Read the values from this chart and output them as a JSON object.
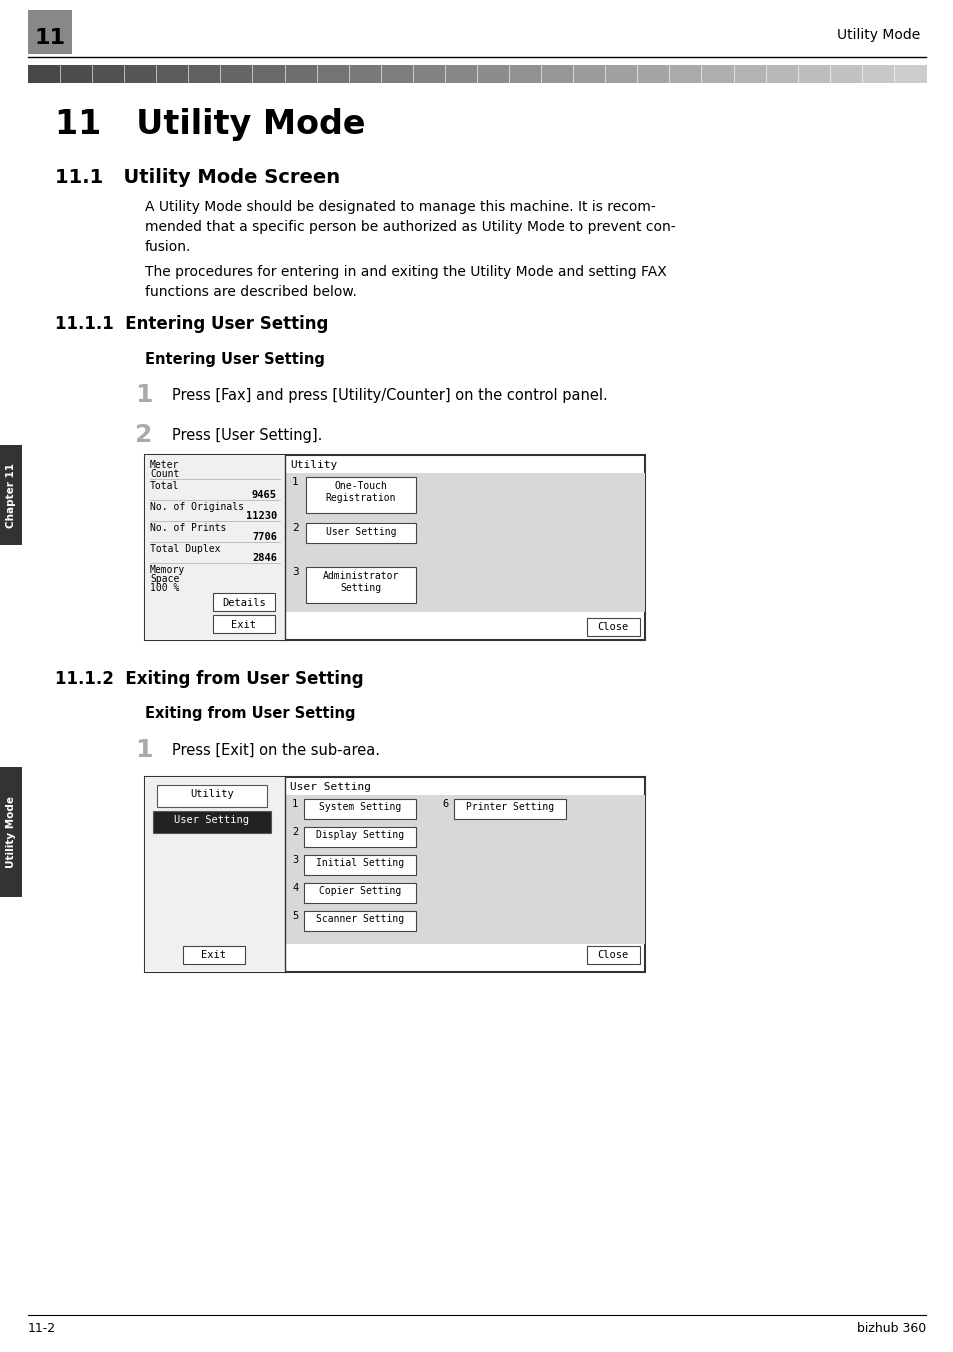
{
  "page_bg": "#ffffff",
  "header_num": "11",
  "header_title": "Utility Mode",
  "footer_left": "11-2",
  "footer_right": "bizhub 360",
  "chapter_label": "Chapter 11",
  "side_label": "Utility Mode",
  "chapter11_title": "11   Utility Mode",
  "section11_1_title": "11.1   Utility Mode Screen",
  "section11_1_body1": "A Utility Mode should be designated to manage this machine. It is recom-\nmended that a specific person be authorized as Utility Mode to prevent con-\nfusion.",
  "section11_1_body2": "The procedures for entering in and exiting the Utility Mode and setting FAX\nfunctions are described below.",
  "section11_1_1_title": "11.1.1  Entering User Setting",
  "bold_heading1": "Entering User Setting",
  "step1_text": "Press [Fax] and press [Utility/Counter] on the control panel.",
  "step2_text": "Press [User Setting].",
  "section11_1_2_title": "11.1.2  Exiting from User Setting",
  "bold_heading2": "Exiting from User Setting",
  "step3_text": "Press [Exit] on the sub-area.",
  "screen1_left_texts": [
    "Meter\nCount",
    "Total",
    "9465",
    "No. of Originals",
    "11230",
    "No. of Prints",
    "7706",
    "Total Duplex",
    "2846",
    "Memory\nSpace",
    "100 %"
  ],
  "screen1_menu": [
    [
      "1",
      "One-Touch\nRegistration"
    ],
    [
      "2",
      "User Setting"
    ],
    [
      "3",
      "Administrator\nSetting"
    ]
  ],
  "screen2_left_menu": [
    "System Setting",
    "Display Setting",
    "Initial Setting",
    "Copier Setting",
    "Scanner Setting"
  ],
  "screen2_right_menu": [
    "Printer Setting"
  ]
}
